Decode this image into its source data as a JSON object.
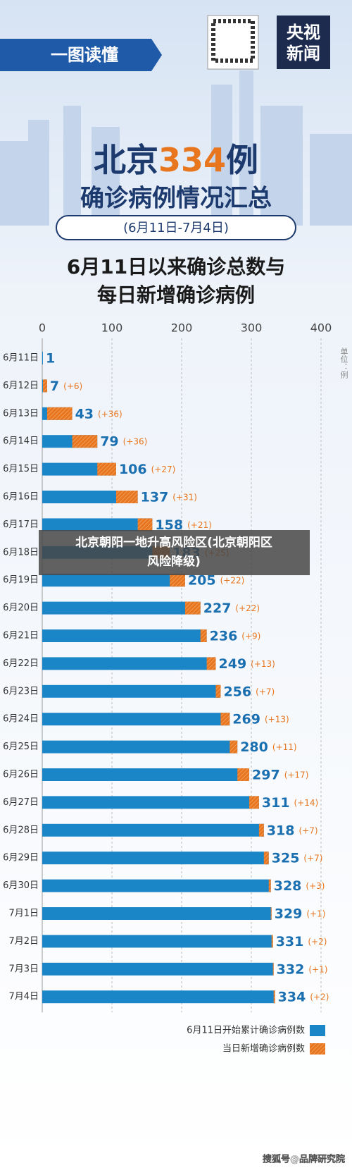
{
  "header": {
    "banner": "一图读懂",
    "logo": [
      "央视",
      "新闻"
    ],
    "title_parts": [
      "北京",
      "334",
      "例"
    ],
    "subtitle": "确诊病例情况汇总",
    "date_range": "(6月11日-7月4日)",
    "caption": [
      "北京朝阳一地升高风险区(北京朝阳区",
      "风险降级)"
    ],
    "watermark": "搜狐号@品牌研究院"
  },
  "chart_data": {
    "type": "bar",
    "orientation": "horizontal",
    "title": [
      "6月11日以来确诊总数与",
      "每日新增确诊病例"
    ],
    "unit": "单位：例",
    "categories": [
      "6月11日",
      "6月12日",
      "6月13日",
      "6月14日",
      "6月15日",
      "6月16日",
      "6月17日",
      "6月18日",
      "6月19日",
      "6月20日",
      "6月21日",
      "6月22日",
      "6月23日",
      "6月24日",
      "6月25日",
      "6月26日",
      "6月27日",
      "6月28日",
      "6月29日",
      "6月30日",
      "7月1日",
      "7月2日",
      "7月3日",
      "7月4日"
    ],
    "series": [
      {
        "name": "6月11日开始累计确诊病例数",
        "color": "#1a86c8",
        "values": [
          1,
          7,
          43,
          79,
          106,
          137,
          158,
          183,
          205,
          227,
          236,
          249,
          256,
          269,
          280,
          297,
          311,
          318,
          325,
          328,
          329,
          331,
          332,
          334
        ]
      },
      {
        "name": "当日新增确诊病例数",
        "color": "#e8761f",
        "values": [
          null,
          6,
          36,
          36,
          27,
          31,
          21,
          25,
          22,
          22,
          9,
          13,
          7,
          13,
          11,
          17,
          14,
          7,
          7,
          3,
          1,
          2,
          1,
          2
        ],
        "value_labels": [
          null,
          "(+6)",
          "(+36)",
          "(+36)",
          "(+27)",
          "(+31)",
          "(+21)",
          "(+25)",
          "(+22)",
          "(+22)",
          "(+9)",
          "(+13)",
          "(+7)",
          "(+13)",
          "(+11)",
          "(+17)",
          "(+14)",
          "(+7)",
          "(+7)",
          "(+3)",
          "(+1)",
          "(+2)",
          "(+1)",
          "(+2)"
        ]
      }
    ],
    "xlim": [
      0,
      400
    ],
    "xticks": [
      0,
      100,
      200,
      300,
      400
    ],
    "grid": true
  }
}
